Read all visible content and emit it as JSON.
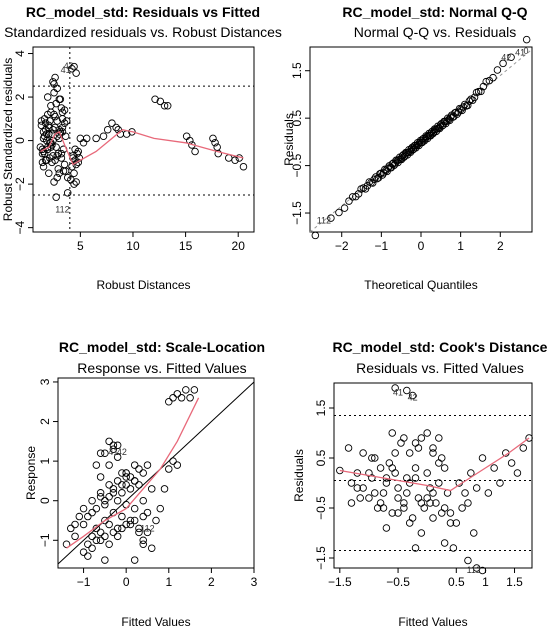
{
  "chart_data": [
    {
      "type": "scatter",
      "title": "RC_model_std: Residuals vs Fitted",
      "subtitle": "Standardized residuals vs. Robust Distances",
      "xlabel": "Robust Distances",
      "ylabel": "Robust Standardized residuals",
      "xlim": [
        0.5,
        21.5
      ],
      "ylim": [
        -4.2,
        4.3
      ],
      "xticks": [
        5,
        10,
        15,
        20
      ],
      "yticks": [
        -4,
        -2,
        0,
        2,
        4
      ],
      "hlines": [
        2.5,
        -2.5
      ],
      "vline": 4.0,
      "x": [
        1.2,
        1.3,
        1.4,
        1.5,
        1.5,
        1.6,
        1.7,
        1.7,
        1.8,
        1.9,
        1.9,
        2.0,
        2.1,
        2.1,
        2.2,
        2.3,
        2.3,
        2.4,
        2.5,
        2.6,
        2.7,
        2.8,
        2.9,
        3.0,
        3.1,
        3.2,
        3.3,
        3.4,
        3.5,
        3.6,
        1.3,
        1.5,
        1.6,
        1.8,
        2.0,
        2.2,
        2.3,
        2.5,
        2.6,
        2.8,
        3.0,
        3.2,
        3.4,
        1.4,
        1.7,
        1.9,
        2.1,
        2.4,
        2.7,
        2.9,
        3.1,
        3.3,
        1.5,
        1.8,
        2.0,
        2.2,
        2.5,
        2.8,
        1.6,
        2.0,
        2.4,
        2.8,
        3.3,
        1.4,
        1.9,
        2.2,
        2.6,
        3.0,
        3.5,
        2.4,
        2.6,
        2.8,
        3.0,
        2.5,
        2.7,
        4.2,
        4.4,
        4.6,
        4.3,
        4.5,
        4.7,
        3.8,
        4.8,
        4.4,
        4.6,
        4.2,
        4.5,
        4.3,
        4.6,
        4.4,
        4.8,
        4.9,
        3.6,
        4.1,
        3.7,
        3.3,
        3.5,
        3.0,
        3.8,
        3.2,
        5.0,
        5.3,
        5.6,
        6.5,
        7.2,
        7.6,
        8.0,
        8.4,
        8.6,
        8.8,
        9.4,
        9.9,
        12.1,
        12.6,
        13.0,
        13.3,
        15.1,
        15.4,
        15.6,
        15.9,
        17.6,
        17.8,
        18.0,
        18.1,
        19.1,
        19.7,
        20.1,
        20.5
      ],
      "y": [
        -0.3,
        0.9,
        -0.6,
        0.4,
        -1.2,
        0.2,
        0.8,
        -0.9,
        0.3,
        -0.3,
        1.2,
        0.6,
        -0.1,
        -0.8,
        1.6,
        0.3,
        -1.0,
        0.5,
        2.6,
        1.1,
        -0.3,
        0.9,
        -0.6,
        0.1,
        1.9,
        -0.8,
        0.4,
        -1.4,
        0.8,
        0.2,
        0.7,
        -0.5,
        1.0,
        0.0,
        -1.5,
        1.3,
        -0.2,
        2.2,
        0.6,
        -0.7,
        0.3,
        1.5,
        -0.4,
        -1.0,
        0.5,
        -0.4,
        0.9,
        0.0,
        1.7,
        -1.3,
        0.4,
        1.0,
        0.1,
        -0.9,
        0.7,
        -0.1,
        1.2,
        0.2,
        -0.6,
        0.3,
        -0.7,
        -1.7,
        0.6,
        -0.4,
        2.0,
        -0.3,
        -0.9,
        -1.5,
        1.4,
        2.7,
        2.9,
        2.4,
        1.9,
        -1.9,
        -2.6,
        3.3,
        3.4,
        3.1,
        -0.7,
        -0.9,
        -0.6,
        -2.4,
        -1.0,
        -1.5,
        -1.9,
        -1.2,
        -0.4,
        -0.8,
        -1.1,
        -2.0,
        -0.5,
        -0.8,
        -1.4,
        -1.8,
        0.9,
        1.3,
        -1.1,
        0.5,
        -1.7,
        -0.6,
        0.1,
        -0.1,
        0.1,
        0.1,
        0.2,
        0.5,
        0.8,
        0.6,
        0.5,
        0.3,
        0.3,
        0.4,
        1.9,
        1.8,
        1.6,
        1.6,
        0.2,
        0.0,
        -0.2,
        -0.5,
        0.1,
        -0.1,
        -0.3,
        -0.6,
        -0.8,
        -0.9,
        -0.8,
        -1.2
      ],
      "point_labels": [
        {
          "x": 3.6,
          "y": 3.1,
          "label": "41"
        },
        {
          "x": 3.9,
          "y": 3.3,
          "label": "42"
        },
        {
          "x": 3.3,
          "y": -3.3,
          "label": "112"
        }
      ],
      "smooth": [
        [
          1.2,
          -0.5
        ],
        [
          2.0,
          -0.3
        ],
        [
          2.6,
          0.3
        ],
        [
          3.0,
          0.4
        ],
        [
          3.5,
          -0.2
        ],
        [
          4.3,
          -1.1
        ],
        [
          5.0,
          -0.9
        ],
        [
          6.5,
          -0.5
        ],
        [
          7.5,
          -0.1
        ],
        [
          9.0,
          0.5
        ],
        [
          10.0,
          0.4
        ],
        [
          12.0,
          0.1
        ],
        [
          15.0,
          -0.1
        ],
        [
          18.0,
          -0.5
        ],
        [
          20.5,
          -0.8
        ]
      ]
    },
    {
      "type": "scatter",
      "title": "RC_model_std: Normal Q-Q",
      "subtitle": "Normal Q-Q vs. Residuals",
      "xlabel": "Theoretical Quantiles",
      "ylabel": "Residuals",
      "xlim": [
        -2.8,
        2.8
      ],
      "ylim": [
        -1.9,
        2.0
      ],
      "xticks": [
        -2,
        -1,
        0,
        1,
        2
      ],
      "yticks": [
        -1.5,
        -0.5,
        0.5,
        1.5
      ],
      "point_labels": [
        {
          "x": -2.45,
          "y": -1.72,
          "label": "112"
        },
        {
          "x": 2.15,
          "y": 1.72,
          "label": "42"
        },
        {
          "x": 2.5,
          "y": 1.82,
          "label": "41"
        },
        {
          "x": 2.65,
          "y": 1.85,
          "label": "0"
        }
      ],
      "qq_line": [
        [
          -2.8,
          -1.9
        ],
        [
          2.8,
          1.95
        ]
      ]
    },
    {
      "type": "scatter",
      "title": "RC_model_std: Scale-Location",
      "subtitle": "Response vs. Fitted Values",
      "xlabel": "Fitted Values",
      "ylabel": "Response",
      "xlim": [
        -1.6,
        3.0
      ],
      "ylim": [
        -1.7,
        3.1
      ],
      "xticks": [
        -1,
        0,
        1,
        2,
        3
      ],
      "yticks": [
        -1,
        0,
        1,
        2,
        3
      ],
      "x": [
        -1.4,
        -1.3,
        -1.2,
        -1.2,
        -1.1,
        -1.0,
        -1.0,
        -0.9,
        -0.9,
        -0.8,
        -0.8,
        -0.7,
        -0.7,
        -0.6,
        -0.6,
        -0.5,
        -0.5,
        -0.4,
        -0.4,
        -0.3,
        -0.3,
        -0.2,
        -0.2,
        -0.1,
        -0.1,
        0.0,
        0.0,
        0.1,
        0.1,
        0.2,
        0.2,
        0.3,
        0.3,
        0.4,
        0.4,
        0.5,
        0.5,
        0.6,
        -0.9,
        -0.8,
        -0.7,
        -0.6,
        -0.5,
        -0.4,
        -0.3,
        -0.2,
        -0.1,
        0.0,
        0.1,
        0.2,
        0.3,
        0.4,
        -1.0,
        -0.8,
        -0.6,
        -0.4,
        -0.2,
        0.0,
        0.2,
        -0.5,
        -0.3,
        -0.1,
        0.1,
        0.3,
        -0.6,
        -0.4,
        -0.2,
        0.0,
        0.2,
        -0.7,
        -0.5,
        -0.3,
        -0.6,
        -0.3,
        -0.2,
        0.0,
        -0.5,
        0.4,
        0.5,
        0.6,
        0.2,
        0.4,
        0.7,
        0.8,
        0.9,
        1.0,
        1.1,
        1.2,
        1.0,
        1.1,
        1.2,
        1.3,
        1.4,
        1.5,
        1.6,
        -0.4,
        -0.1
      ],
      "y": [
        -1.1,
        -0.7,
        -0.6,
        -0.9,
        -0.4,
        -0.6,
        -1.3,
        -0.4,
        -1.1,
        -0.3,
        -0.9,
        -0.2,
        -0.7,
        0.1,
        -0.8,
        0.0,
        -0.5,
        0.1,
        -0.6,
        0.3,
        -0.3,
        0.0,
        -0.7,
        0.2,
        -0.4,
        0.6,
        -0.1,
        0.3,
        -0.5,
        0.5,
        -0.2,
        0.4,
        -0.8,
        0.7,
        0.0,
        0.9,
        -0.3,
        0.3,
        -1.4,
        -1.2,
        -1.0,
        -1.0,
        -0.9,
        -1.1,
        -0.8,
        -0.9,
        -0.7,
        -0.6,
        -0.6,
        -0.5,
        -0.7,
        -0.4,
        -0.2,
        0.0,
        0.2,
        0.4,
        0.5,
        0.7,
        0.9,
        -0.1,
        0.2,
        0.4,
        0.6,
        0.8,
        0.6,
        0.9,
        1.1,
        0.7,
        0.5,
        0.9,
        1.2,
        1.4,
        1.2,
        1.3,
        1.4,
        0.4,
        -1.5,
        -1.0,
        -0.8,
        -1.2,
        -1.5,
        -1.1,
        -0.5,
        -0.2,
        0.3,
        0.8,
        1.0,
        0.9,
        2.5,
        2.6,
        2.7,
        2.6,
        2.8,
        2.6,
        2.8,
        1.5,
        0.7
      ],
      "point_labels": [
        {
          "x": -0.3,
          "y": 1.15,
          "label": "41"
        },
        {
          "x": -0.1,
          "y": 1.15,
          "label": "42"
        },
        {
          "x": 0.5,
          "y": -0.78,
          "label": "112"
        }
      ],
      "ref_line": [
        [
          -1.6,
          -1.6
        ],
        [
          3.0,
          3.0
        ]
      ],
      "smooth": [
        [
          -1.4,
          -1.2
        ],
        [
          -1.0,
          -0.9
        ],
        [
          -0.5,
          -0.5
        ],
        [
          0.0,
          -0.2
        ],
        [
          0.4,
          0.3
        ],
        [
          0.8,
          0.8
        ],
        [
          1.2,
          1.5
        ],
        [
          1.7,
          2.6
        ]
      ]
    },
    {
      "type": "scatter",
      "title": "RC_model_std: Cook's Distance",
      "subtitle": "Residuals vs. Fitted Values",
      "xlabel": "Fitted Values",
      "ylabel": "Residuals",
      "xlim": [
        -1.6,
        1.8
      ],
      "ylim": [
        -1.7,
        2.0
      ],
      "xticks": [
        -1.5,
        -0.5,
        0.5,
        1.0,
        1.5
      ],
      "yticks": [
        -1.5,
        -0.5,
        0.5,
        1.5
      ],
      "hlines": [
        1.35,
        0.05,
        -1.35
      ],
      "x": [
        -1.5,
        -1.35,
        -1.3,
        -1.2,
        -1.1,
        -1.0,
        -0.95,
        -0.9,
        -0.85,
        -0.8,
        -0.75,
        -0.7,
        -0.65,
        -0.6,
        -0.55,
        -0.5,
        -0.45,
        -0.4,
        -0.35,
        -0.3,
        -0.25,
        -0.2,
        -0.15,
        -0.1,
        -0.05,
        0.0,
        0.05,
        0.1,
        0.15,
        0.2,
        0.25,
        0.3,
        0.35,
        0.4,
        0.45,
        -1.3,
        -1.1,
        -0.9,
        -0.7,
        -0.5,
        -0.3,
        -0.1,
        0.1,
        0.3,
        -1.2,
        -1.0,
        -0.8,
        -0.6,
        -0.4,
        -0.2,
        0.0,
        0.2,
        0.4,
        -1.15,
        -0.95,
        -0.75,
        -0.55,
        -0.35,
        -0.15,
        0.05,
        0.25,
        -0.6,
        -0.4,
        -0.2,
        0.0,
        0.2,
        -0.7,
        -0.5,
        -0.3,
        -0.1,
        0.1,
        0.3,
        0.5,
        0.6,
        0.8,
        0.55,
        0.65,
        0.7,
        0.75,
        0.85,
        0.95,
        1.05,
        1.15,
        1.25,
        1.35,
        1.45,
        1.55,
        1.65,
        1.75,
        -0.55,
        -0.35,
        -0.25,
        0.7,
        0.85,
        0.95,
        -0.2,
        0.1
      ],
      "y": [
        0.25,
        0.7,
        -0.4,
        0.2,
        0.6,
        -0.3,
        0.1,
        0.5,
        -0.5,
        0.3,
        -0.2,
        0.0,
        0.4,
        -0.6,
        0.2,
        -0.1,
        0.8,
        -0.4,
        0.1,
        0.6,
        -0.7,
        0.3,
        -0.3,
        0.9,
        -0.5,
        0.2,
        -0.1,
        0.7,
        -0.4,
        0.0,
        -0.6,
        0.3,
        -0.2,
        -0.8,
        -1.3,
        0.0,
        -0.1,
        -0.2,
        0.1,
        -0.3,
        0.0,
        -0.4,
        -0.2,
        -0.5,
        -0.1,
        0.2,
        -0.4,
        0.3,
        -0.5,
        0.1,
        -0.3,
        0.4,
        -0.6,
        -0.3,
        0.5,
        -0.5,
        0.6,
        -0.2,
        0.7,
        -0.4,
        0.5,
        1.0,
        0.9,
        0.8,
        1.0,
        0.9,
        -0.9,
        -0.6,
        -0.8,
        -1.0,
        -0.7,
        -1.2,
        -0.8,
        -0.5,
        -1.0,
        0.0,
        -0.2,
        -0.4,
        0.2,
        -0.1,
        0.5,
        -0.2,
        0.3,
        0.0,
        0.6,
        0.4,
        0.2,
        0.7,
        0.9,
        1.9,
        1.85,
        1.75,
        -1.55,
        -1.7,
        -1.75,
        -1.3,
        0.6
      ],
      "point_labels": [
        {
          "x": -0.5,
          "y": 1.75,
          "label": "41"
        },
        {
          "x": -0.25,
          "y": 1.65,
          "label": "42"
        },
        {
          "x": 0.8,
          "y": -1.8,
          "label": "112"
        }
      ],
      "smooth": [
        [
          -1.5,
          0.25
        ],
        [
          -1.0,
          0.15
        ],
        [
          -0.5,
          0.05
        ],
        [
          0.0,
          -0.05
        ],
        [
          0.4,
          -0.15
        ],
        [
          0.6,
          0.0
        ],
        [
          1.0,
          0.3
        ],
        [
          1.4,
          0.6
        ],
        [
          1.75,
          0.9
        ]
      ]
    }
  ]
}
